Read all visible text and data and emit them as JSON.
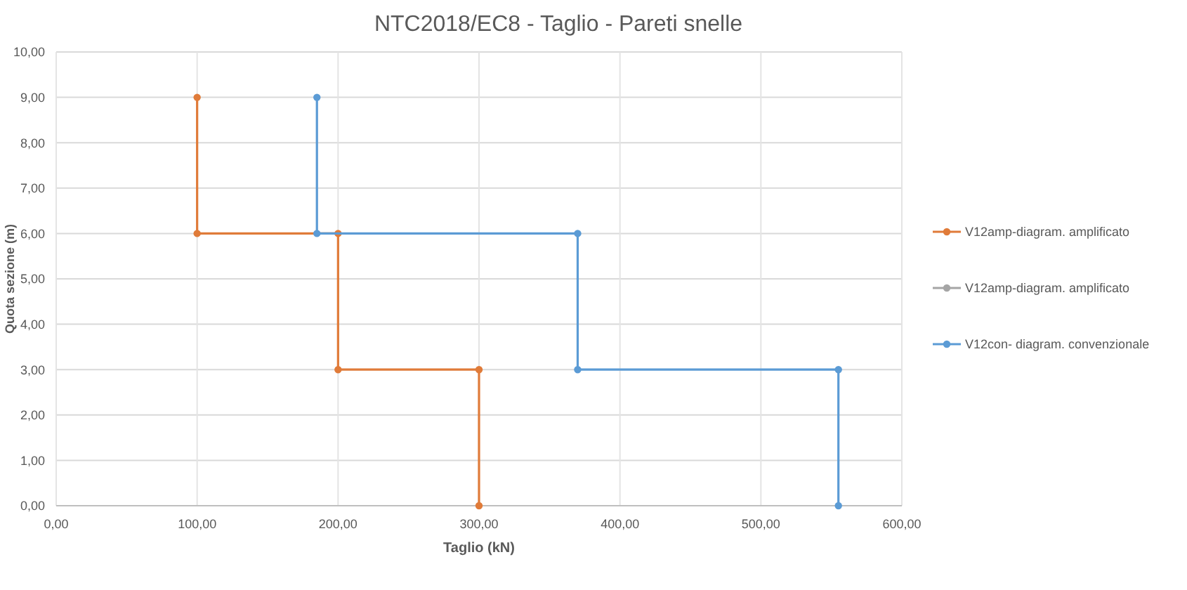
{
  "chart_data": {
    "type": "line",
    "title": "NTC2018/EC8 - Taglio - Pareti snelle",
    "xlabel": "Taglio (kN)",
    "ylabel": "Quota sezione (m)",
    "xlim": [
      0,
      600
    ],
    "ylim": [
      0,
      10
    ],
    "xticks": [
      {
        "value": 0,
        "label": "0,00"
      },
      {
        "value": 100,
        "label": "100,00"
      },
      {
        "value": 200,
        "label": "200,00"
      },
      {
        "value": 300,
        "label": "300,00"
      },
      {
        "value": 400,
        "label": "400,00"
      },
      {
        "value": 500,
        "label": "500,00"
      },
      {
        "value": 600,
        "label": "600,00"
      }
    ],
    "yticks": [
      {
        "value": 0,
        "label": "0,00"
      },
      {
        "value": 1,
        "label": "1,00"
      },
      {
        "value": 2,
        "label": "2,00"
      },
      {
        "value": 3,
        "label": "3,00"
      },
      {
        "value": 4,
        "label": "4,00"
      },
      {
        "value": 5,
        "label": "5,00"
      },
      {
        "value": 6,
        "label": "6,00"
      },
      {
        "value": 7,
        "label": "7,00"
      },
      {
        "value": 8,
        "label": "8,00"
      },
      {
        "value": 9,
        "label": "9,00"
      },
      {
        "value": 10,
        "label": "10,00"
      }
    ],
    "grid": true,
    "legend": "right",
    "marker": "circle",
    "series": [
      {
        "name": "V12amp-diagram. amplificato",
        "color": "#e07b39",
        "x": [
          100,
          100,
          200,
          200,
          300,
          300
        ],
        "values": [
          9,
          6,
          6,
          3,
          3,
          0
        ]
      },
      {
        "name": "V12amp-diagram. amplificato",
        "color": "#a5a5a5"
      },
      {
        "name": "V12con- diagram. convenzionale",
        "color": "#5b9bd5",
        "x": [
          185,
          185,
          370,
          370,
          555,
          555
        ],
        "values": [
          9,
          6,
          6,
          3,
          3,
          0
        ]
      }
    ]
  }
}
